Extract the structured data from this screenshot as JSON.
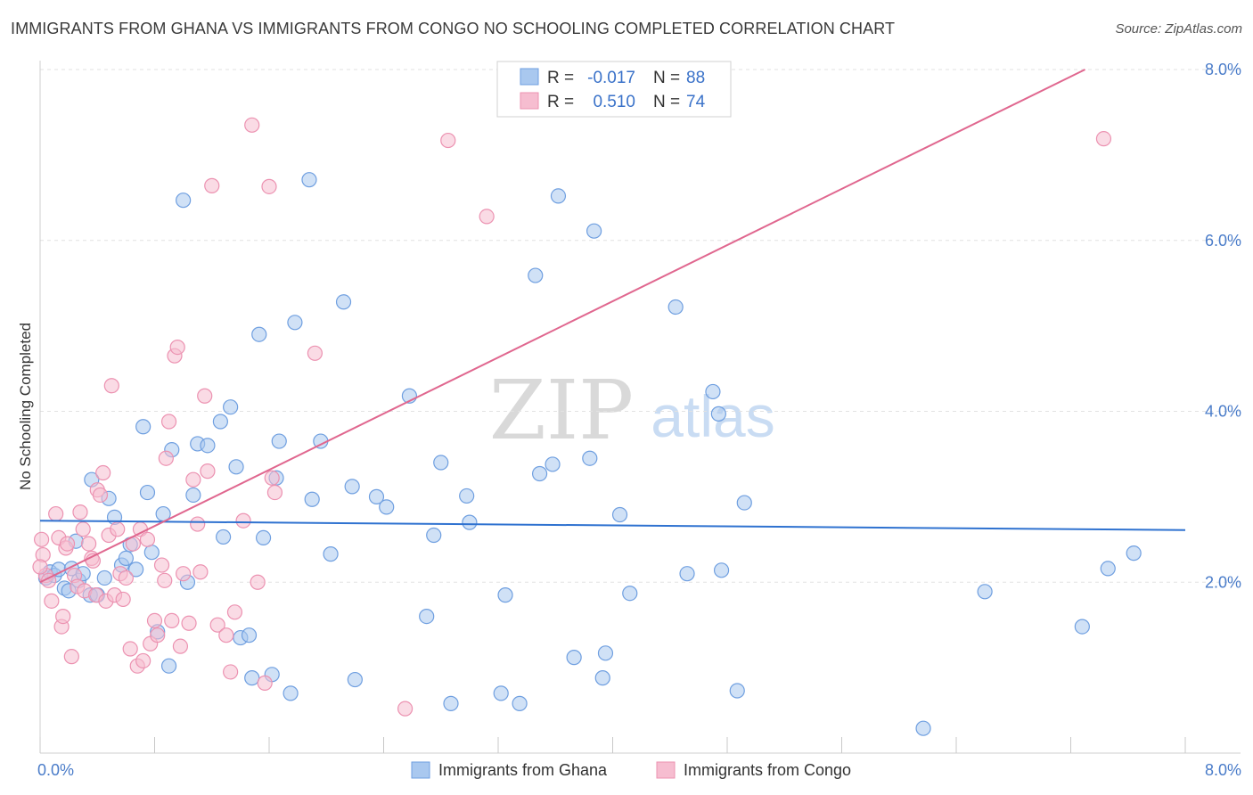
{
  "title": "IMMIGRANTS FROM GHANA VS IMMIGRANTS FROM CONGO NO SCHOOLING COMPLETED CORRELATION CHART",
  "source": "Source: ZipAtlas.com",
  "watermark": {
    "zip": "ZIP",
    "atlas": "atlas"
  },
  "colors": {
    "ghana_fill": "#a9c8ef",
    "ghana_stroke": "#6f9fe0",
    "ghana_line": "#2f72d0",
    "congo_fill": "#f6bdd0",
    "congo_stroke": "#ec92b1",
    "congo_line": "#e0678f",
    "tick_label": "#4a7cc9",
    "grid": "#e2e2e2"
  },
  "legend_top": [
    {
      "r_label": "R =",
      "r_value": "-0.017",
      "n_label": "N =",
      "n_value": "88"
    },
    {
      "r_label": "R =",
      "r_value": "0.510",
      "n_label": "N =",
      "n_value": "74"
    }
  ],
  "chart_data": {
    "type": "scatter",
    "title": "IMMIGRANTS FROM GHANA VS IMMIGRANTS FROM CONGO NO SCHOOLING COMPLETED CORRELATION CHART",
    "xlabel": "",
    "ylabel": "No Schooling Completed",
    "xlim": [
      0,
      8
    ],
    "ylim": [
      0,
      8
    ],
    "x_tick_labels": [
      "0.0%",
      "8.0%"
    ],
    "y_ticks": [
      2,
      4,
      6,
      8
    ],
    "y_tick_labels": [
      "2.0%",
      "4.0%",
      "6.0%",
      "8.0%"
    ],
    "grid": true,
    "series": [
      {
        "name": "Immigrants from Ghana",
        "r": -0.017,
        "n": 88,
        "trend": {
          "x": [
            0,
            8
          ],
          "y": [
            2.72,
            2.61
          ]
        },
        "points": [
          [
            0.04,
            2.05
          ],
          [
            0.07,
            2.12
          ],
          [
            0.1,
            2.08
          ],
          [
            0.13,
            2.15
          ],
          [
            0.17,
            1.93
          ],
          [
            0.2,
            1.9
          ],
          [
            0.22,
            2.16
          ],
          [
            0.25,
            2.48
          ],
          [
            0.27,
            2.02
          ],
          [
            0.3,
            2.1
          ],
          [
            0.35,
            1.85
          ],
          [
            0.36,
            3.2
          ],
          [
            0.4,
            1.85
          ],
          [
            0.45,
            2.05
          ],
          [
            0.48,
            2.98
          ],
          [
            0.52,
            2.76
          ],
          [
            0.57,
            2.2
          ],
          [
            0.6,
            2.28
          ],
          [
            0.63,
            2.44
          ],
          [
            0.67,
            2.15
          ],
          [
            0.72,
            3.82
          ],
          [
            0.75,
            3.05
          ],
          [
            0.78,
            2.35
          ],
          [
            0.82,
            1.42
          ],
          [
            0.86,
            2.8
          ],
          [
            0.9,
            1.02
          ],
          [
            0.92,
            3.55
          ],
          [
            1.0,
            6.47
          ],
          [
            1.03,
            2.0
          ],
          [
            1.07,
            3.02
          ],
          [
            1.1,
            3.62
          ],
          [
            1.17,
            3.6
          ],
          [
            1.26,
            3.88
          ],
          [
            1.28,
            2.53
          ],
          [
            1.33,
            4.05
          ],
          [
            1.37,
            3.35
          ],
          [
            1.4,
            1.35
          ],
          [
            1.46,
            1.38
          ],
          [
            1.48,
            0.88
          ],
          [
            1.53,
            4.9
          ],
          [
            1.56,
            2.52
          ],
          [
            1.62,
            0.92
          ],
          [
            1.65,
            3.22
          ],
          [
            1.67,
            3.65
          ],
          [
            1.75,
            0.7
          ],
          [
            1.78,
            5.04
          ],
          [
            1.88,
            6.71
          ],
          [
            1.9,
            2.97
          ],
          [
            1.96,
            3.65
          ],
          [
            2.03,
            2.33
          ],
          [
            2.12,
            5.28
          ],
          [
            2.18,
            3.12
          ],
          [
            2.2,
            0.86
          ],
          [
            2.35,
            3.0
          ],
          [
            2.42,
            2.88
          ],
          [
            2.58,
            4.18
          ],
          [
            2.7,
            1.6
          ],
          [
            2.75,
            2.55
          ],
          [
            2.8,
            3.4
          ],
          [
            2.87,
            0.58
          ],
          [
            2.98,
            3.01
          ],
          [
            3.0,
            2.7
          ],
          [
            3.22,
            0.7
          ],
          [
            3.25,
            1.85
          ],
          [
            3.35,
            0.58
          ],
          [
            3.46,
            5.59
          ],
          [
            3.49,
            3.27
          ],
          [
            3.58,
            3.38
          ],
          [
            3.62,
            6.52
          ],
          [
            3.73,
            1.12
          ],
          [
            3.84,
            3.45
          ],
          [
            3.87,
            6.11
          ],
          [
            3.93,
            0.88
          ],
          [
            3.95,
            1.17
          ],
          [
            4.05,
            2.79
          ],
          [
            4.12,
            1.87
          ],
          [
            4.44,
            5.22
          ],
          [
            4.52,
            2.1
          ],
          [
            4.7,
            4.23
          ],
          [
            4.74,
            3.97
          ],
          [
            4.76,
            2.14
          ],
          [
            4.87,
            0.73
          ],
          [
            4.92,
            2.93
          ],
          [
            6.17,
            0.29
          ],
          [
            6.6,
            1.89
          ],
          [
            7.28,
            1.48
          ],
          [
            7.46,
            2.16
          ],
          [
            7.64,
            2.34
          ]
        ]
      },
      {
        "name": "Immigrants from Congo",
        "r": 0.51,
        "n": 74,
        "trend": {
          "x": [
            0,
            7.3
          ],
          "y": [
            2.0,
            8.0
          ]
        },
        "points": [
          [
            0.02,
            2.32
          ],
          [
            0.04,
            2.08
          ],
          [
            0.06,
            2.02
          ],
          [
            0.08,
            1.78
          ],
          [
            0.11,
            2.8
          ],
          [
            0.13,
            2.52
          ],
          [
            0.15,
            1.48
          ],
          [
            0.16,
            1.6
          ],
          [
            0.18,
            2.4
          ],
          [
            0.19,
            2.45
          ],
          [
            0.22,
            1.13
          ],
          [
            0.24,
            2.08
          ],
          [
            0.26,
            1.95
          ],
          [
            0.28,
            2.82
          ],
          [
            0.3,
            2.62
          ],
          [
            0.31,
            1.9
          ],
          [
            0.34,
            2.45
          ],
          [
            0.36,
            2.28
          ],
          [
            0.37,
            2.25
          ],
          [
            0.39,
            1.85
          ],
          [
            0.4,
            3.08
          ],
          [
            0.42,
            3.02
          ],
          [
            0.44,
            3.28
          ],
          [
            0.46,
            1.78
          ],
          [
            0.48,
            2.55
          ],
          [
            0.5,
            4.3
          ],
          [
            0.52,
            1.85
          ],
          [
            0.54,
            2.62
          ],
          [
            0.56,
            2.1
          ],
          [
            0.58,
            1.8
          ],
          [
            0.6,
            2.05
          ],
          [
            0.63,
            1.22
          ],
          [
            0.65,
            2.45
          ],
          [
            0.68,
            1.02
          ],
          [
            0.7,
            2.62
          ],
          [
            0.72,
            1.08
          ],
          [
            0.75,
            2.5
          ],
          [
            0.77,
            1.28
          ],
          [
            0.8,
            1.55
          ],
          [
            0.82,
            1.38
          ],
          [
            0.85,
            2.2
          ],
          [
            0.87,
            2.02
          ],
          [
            0.88,
            3.45
          ],
          [
            0.9,
            3.88
          ],
          [
            0.92,
            1.55
          ],
          [
            0.94,
            4.65
          ],
          [
            0.96,
            4.75
          ],
          [
            0.98,
            1.25
          ],
          [
            1.0,
            2.1
          ],
          [
            1.04,
            1.52
          ],
          [
            1.07,
            3.2
          ],
          [
            1.1,
            2.68
          ],
          [
            1.12,
            2.12
          ],
          [
            1.15,
            4.18
          ],
          [
            1.17,
            3.3
          ],
          [
            1.2,
            6.64
          ],
          [
            1.24,
            1.5
          ],
          [
            1.3,
            1.38
          ],
          [
            1.33,
            0.95
          ],
          [
            1.36,
            1.65
          ],
          [
            1.42,
            2.72
          ],
          [
            1.48,
            7.35
          ],
          [
            1.52,
            2.0
          ],
          [
            1.57,
            0.82
          ],
          [
            1.6,
            6.63
          ],
          [
            1.62,
            3.22
          ],
          [
            1.64,
            3.05
          ],
          [
            1.92,
            4.68
          ],
          [
            2.55,
            0.52
          ],
          [
            2.85,
            7.17
          ],
          [
            3.12,
            6.28
          ],
          [
            7.43,
            7.19
          ],
          [
            0.0,
            2.18
          ],
          [
            0.01,
            2.5
          ]
        ]
      }
    ]
  },
  "legend_bottom": [
    "Immigrants from Ghana",
    "Immigrants from Congo"
  ]
}
